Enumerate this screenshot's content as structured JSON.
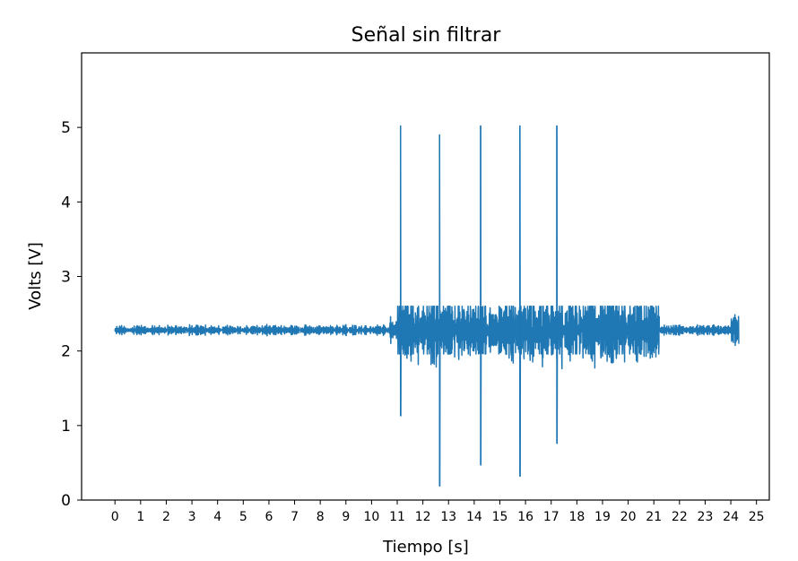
{
  "chart_data": {
    "type": "line",
    "title": "Señal sin filtrar",
    "xlabel": "Tiempo [s]",
    "ylabel": "Volts [V]",
    "xlim": [
      -1.3,
      25.5
    ],
    "ylim": [
      0,
      6.0
    ],
    "xticks": [
      0,
      1,
      2,
      3,
      4,
      5,
      6,
      7,
      8,
      9,
      10,
      11,
      12,
      13,
      14,
      15,
      16,
      17,
      18,
      19,
      20,
      21,
      22,
      23,
      24,
      25
    ],
    "yticks": [
      0,
      1,
      2,
      3,
      4,
      5
    ],
    "grid": false,
    "legend": "none",
    "series": [
      {
        "color": "#1f77b4",
        "baseline": 2.28,
        "segments": [
          {
            "t": [
              0.0,
              10.7
            ],
            "min": 2.2,
            "max": 2.36
          },
          {
            "t": [
              10.7,
              11.0
            ],
            "min": 2.1,
            "max": 2.48
          },
          {
            "t": [
              11.0,
              21.2
            ],
            "min": 1.7,
            "max": 2.6
          },
          {
            "t": [
              21.2,
              24.0
            ],
            "min": 2.2,
            "max": 2.35
          },
          {
            "t": [
              24.0,
              24.3
            ],
            "min": 1.97,
            "max": 2.6
          }
        ],
        "peaks": [
          {
            "t": 11.13,
            "max": 5.02,
            "min": 1.13
          },
          {
            "t": 12.65,
            "max": 4.9,
            "min": 0.19
          },
          {
            "t": 14.25,
            "max": 5.02,
            "min": 0.47
          },
          {
            "t": 15.78,
            "max": 5.02,
            "min": 0.32
          },
          {
            "t": 17.22,
            "max": 5.02,
            "min": 0.76
          }
        ]
      }
    ]
  }
}
